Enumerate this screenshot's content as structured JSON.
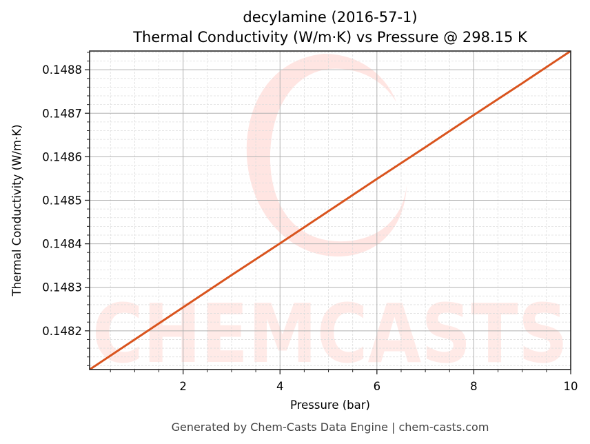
{
  "title": {
    "line1": "decylamine (2016-57-1)",
    "line2": "Thermal Conductivity (W/m·K) vs Pressure @ 298.15 K"
  },
  "footer": "Generated by Chem-Casts Data Engine | chem-casts.com",
  "watermark": {
    "text": "CHEMCASTS"
  },
  "colors": {
    "line": "#d9541e",
    "frame": "#222222",
    "grid_major": "#b0b0b0",
    "grid_minor": "#dddddd",
    "watermark": "#ffd9d4"
  },
  "chart_data": {
    "type": "line",
    "title": "decylamine (2016-57-1)\nThermal Conductivity (W/m·K) vs Pressure @ 298.15 K",
    "xlabel": "Pressure (bar)",
    "ylabel": "Thermal Conductivity (W/m·K)",
    "xlim": [
      0.07,
      10
    ],
    "ylim": [
      0.148111,
      0.148843
    ],
    "xticks": [
      2,
      4,
      6,
      8,
      10
    ],
    "xtick_labels": [
      "2",
      "4",
      "6",
      "8",
      "10"
    ],
    "yticks": [
      0.1482,
      0.1483,
      0.1484,
      0.1485,
      0.1486,
      0.1487,
      0.1488
    ],
    "ytick_labels": [
      "0.1482",
      "0.1483",
      "0.1484",
      "0.1485",
      "0.1486",
      "0.1487",
      "0.1488"
    ],
    "grid": true,
    "legend": null,
    "series": [
      {
        "name": "Thermal Conductivity",
        "x": [
          0.07,
          1,
          2,
          3,
          4,
          5,
          6,
          7,
          8,
          9,
          10
        ],
        "values": [
          0.148111,
          0.14818,
          0.148254,
          0.148328,
          0.148401,
          0.148475,
          0.148549,
          0.148622,
          0.148696,
          0.148769,
          0.148843
        ]
      }
    ]
  }
}
